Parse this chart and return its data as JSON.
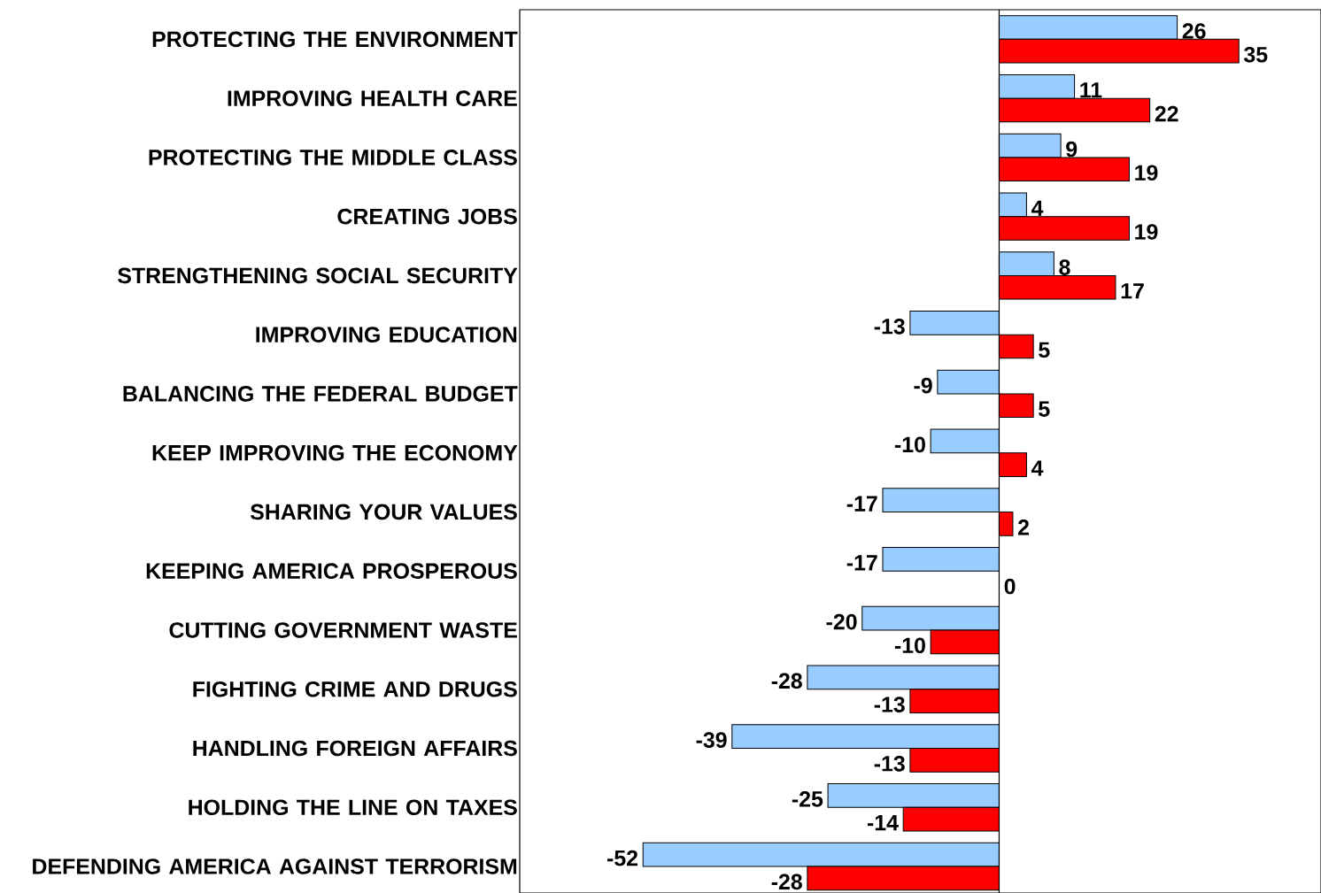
{
  "chart_data": {
    "type": "bar",
    "orientation": "horizontal",
    "categories": [
      "PROTECTING THE ENVIRONMENT",
      "IMPROVING HEALTH CARE",
      "PROTECTING THE MIDDLE CLASS",
      "CREATING JOBS",
      "STRENGTHENING SOCIAL SECURITY",
      "IMPROVING EDUCATION",
      "BALANCING THE FEDERAL BUDGET",
      "KEEP IMPROVING THE ECONOMY",
      "SHARING YOUR VALUES",
      "KEEPING AMERICA PROSPEROUS",
      "CUTTING GOVERNMENT WASTE",
      "FIGHTING CRIME AND DRUGS",
      "HANDLING FOREIGN AFFAIRS",
      "HOLDING THE LINE ON TAXES",
      "DEFENDING AMERICA AGAINST TERRORISM"
    ],
    "series": [
      {
        "color": "#99ccff",
        "values": [
          26,
          11,
          9,
          4,
          8,
          -13,
          -9,
          -10,
          -17,
          -17,
          -20,
          -28,
          -39,
          -25,
          -52
        ]
      },
      {
        "color": "#ff0000",
        "values": [
          35,
          22,
          19,
          19,
          17,
          5,
          5,
          4,
          2,
          0,
          -10,
          -13,
          -13,
          -14,
          -28
        ]
      }
    ],
    "xlim": [
      -70,
      47
    ],
    "data_labels": true,
    "tick_labels": "y"
  }
}
